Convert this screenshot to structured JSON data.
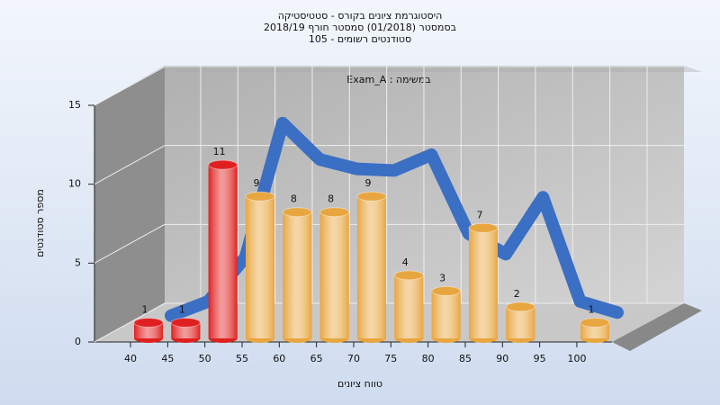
{
  "chart_data": {
    "type": "bar",
    "title": [
      "היסטוגרמת ציונים בקורס - סטטיסטיקה",
      "בסמסטר  (01/2018)  סמסטר חורף 2018/19",
      "סטודנטים רשומים - 105"
    ],
    "subtitle": "Exam_A : במשימה",
    "x_label": "טווח ציונים",
    "y_label": "מספר סטודנטים",
    "categories": [
      "40",
      "45",
      "50",
      "55",
      "60",
      "65",
      "70",
      "75",
      "80",
      "85",
      "90",
      "95",
      "100"
    ],
    "values": [
      1,
      1,
      11,
      9,
      8,
      8,
      9,
      4,
      3,
      7,
      2,
      null,
      1
    ],
    "colors": [
      "#e02020",
      "#e02020",
      "#e02020",
      "#e8a640",
      "#e8a640",
      "#e8a640",
      "#e8a640",
      "#e8a640",
      "#e8a640",
      "#e8a640",
      "#e8a640",
      "#e8a640",
      "#e8a640"
    ],
    "line": {
      "color": "#3a6fc4",
      "values": [
        0.3,
        1.2,
        4,
        12.5,
        10.2,
        9.6,
        9.5,
        10.5,
        5.5,
        4.2,
        7.8,
        1.2,
        0.5
      ]
    },
    "ylim": [
      0,
      15
    ],
    "yticks": [
      0,
      5,
      10,
      15
    ],
    "grid": true
  }
}
